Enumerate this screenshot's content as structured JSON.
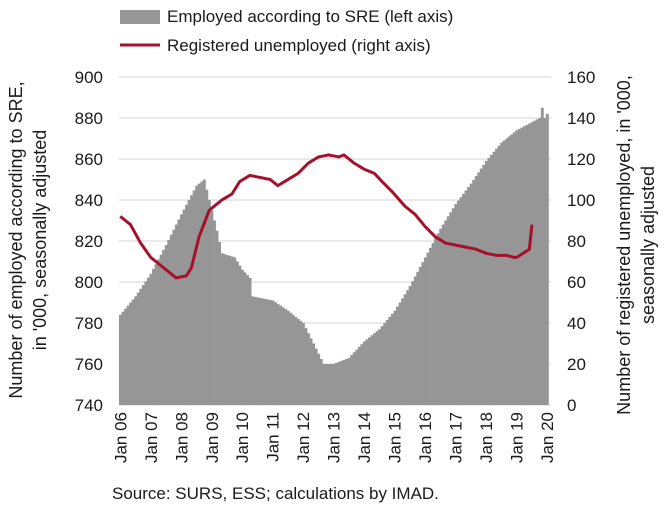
{
  "chart_data": {
    "type": "bar+line",
    "title": "",
    "source_note": "Source: SURS, ESS; calculations by IMAD.",
    "left_axis": {
      "label_line1": "Number of employed according to SRE,",
      "label_line2": "in '000, seasonally adjusted",
      "min": 740,
      "max": 900,
      "ticks": [
        "740",
        "760",
        "780",
        "800",
        "820",
        "840",
        "860",
        "880",
        "900"
      ]
    },
    "right_axis": {
      "label_line1": "Number of registered unemployed, in '000,",
      "label_line2": "seasonally adjusted",
      "min": 0,
      "max": 160,
      "ticks": [
        "0",
        "20",
        "40",
        "60",
        "80",
        "100",
        "120",
        "140",
        "160"
      ]
    },
    "x_axis": {
      "labels": [
        "Jan 06",
        "Jan 07",
        "Jan 08",
        "Jan 09",
        "Jan 10",
        "Jan 11",
        "Jan 12",
        "Jan 13",
        "Jan 14",
        "Jan 15",
        "Jan 16",
        "Jan 17",
        "Jan 18",
        "Jan 19",
        "Jan 20"
      ]
    },
    "legend_position": "top",
    "grid": "horizontal",
    "colors": {
      "employed": "#969696",
      "unemployed": "#a5102a",
      "grid": "#d4d4d4"
    },
    "series": [
      {
        "name": "Employed according to SRE (left axis)",
        "type": "bar",
        "axis": "left",
        "start": "Jan 06",
        "frequency": "monthly",
        "anchors": [
          [
            "Jan 06",
            784
          ],
          [
            "Jul 06",
            793
          ],
          [
            "Jan 07",
            804
          ],
          [
            "Jul 07",
            818
          ],
          [
            "Jan 08",
            833
          ],
          [
            "Jul 08",
            847
          ],
          [
            "Oct 08",
            850
          ],
          [
            "Jan 09",
            835
          ],
          [
            "Mar 09",
            825
          ],
          [
            "May 09",
            814
          ],
          [
            "Oct 09",
            812
          ],
          [
            "Jan 10",
            806
          ],
          [
            "Apr 10",
            802
          ],
          [
            "May 10",
            793
          ],
          [
            "Jan 11",
            791
          ],
          [
            "Jul 11",
            786
          ],
          [
            "Jan 12",
            780
          ],
          [
            "Jul 12",
            765
          ],
          [
            "Sep 12",
            760
          ],
          [
            "Jan 13",
            760
          ],
          [
            "Jul 13",
            763
          ],
          [
            "Jan 14",
            771
          ],
          [
            "Jul 14",
            777
          ],
          [
            "Jan 15",
            786
          ],
          [
            "Jul 15",
            798
          ],
          [
            "Jan 16",
            812
          ],
          [
            "Jul 16",
            826
          ],
          [
            "Jan 17",
            838
          ],
          [
            "Jul 17",
            848
          ],
          [
            "Jan 18",
            859
          ],
          [
            "Jul 18",
            868
          ],
          [
            "Jan 19",
            874
          ],
          [
            "Jul 19",
            878
          ],
          [
            "Oct 19",
            880
          ],
          [
            "Nov 19",
            885
          ],
          [
            "Dec 19",
            880
          ],
          [
            "Jan 20",
            882
          ]
        ]
      },
      {
        "name": "Registered unemployed (right axis)",
        "type": "line",
        "axis": "right",
        "start": "Jan 06",
        "frequency": "monthly",
        "anchors": [
          [
            "Jan 06",
            92
          ],
          [
            "May 06",
            88
          ],
          [
            "Sep 06",
            79
          ],
          [
            "Jan 07",
            72
          ],
          [
            "May 07",
            68
          ],
          [
            "Sep 07",
            64
          ],
          [
            "Nov 07",
            62
          ],
          [
            "Mar 08",
            63
          ],
          [
            "May 08",
            67
          ],
          [
            "Aug 08",
            82
          ],
          [
            "Dec 08",
            95
          ],
          [
            "May 09",
            100
          ],
          [
            "Sep 09",
            103
          ],
          [
            "Dec 09",
            109
          ],
          [
            "Apr 10",
            112
          ],
          [
            "Aug 10",
            111
          ],
          [
            "Dec 10",
            110
          ],
          [
            "Mar 11",
            107
          ],
          [
            "Jul 11",
            110
          ],
          [
            "Nov 11",
            113
          ],
          [
            "Mar 12",
            118
          ],
          [
            "Jul 12",
            121
          ],
          [
            "Nov 12",
            122
          ],
          [
            "Mar 13",
            121
          ],
          [
            "May 13",
            122
          ],
          [
            "Sep 13",
            118
          ],
          [
            "Jan 14",
            115
          ],
          [
            "May 14",
            113
          ],
          [
            "Aug 14",
            109
          ],
          [
            "Dec 14",
            104
          ],
          [
            "May 15",
            97
          ],
          [
            "Sep 15",
            93
          ],
          [
            "Jan 16",
            87
          ],
          [
            "May 16",
            82
          ],
          [
            "Sep 16",
            79
          ],
          [
            "Jan 17",
            78
          ],
          [
            "May 17",
            77
          ],
          [
            "Sep 17",
            76
          ],
          [
            "Jan 18",
            74
          ],
          [
            "May 18",
            73
          ],
          [
            "Sep 18",
            73
          ],
          [
            "Dec 18",
            72
          ],
          [
            "Jan 19",
            72
          ],
          [
            "Jun 19",
            76
          ],
          [
            "Jul 19",
            88
          ]
        ]
      }
    ]
  }
}
